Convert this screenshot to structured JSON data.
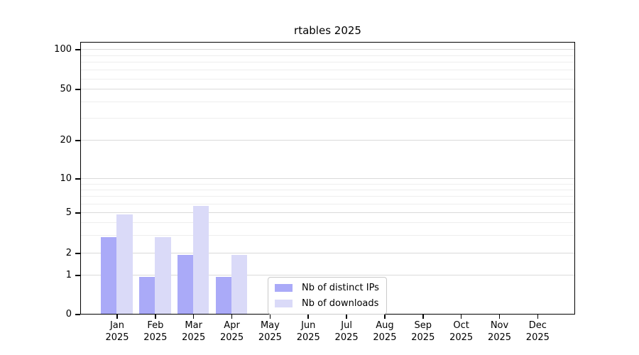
{
  "chart_data": {
    "type": "bar",
    "title": "rtables 2025",
    "x_year": "2025",
    "categories": [
      "Jan",
      "Feb",
      "Mar",
      "Apr",
      "May",
      "Jun",
      "Jul",
      "Aug",
      "Sep",
      "Oct",
      "Nov",
      "Dec"
    ],
    "series": [
      {
        "name": "Nb of distinct IPs",
        "color": "#aaaaf8",
        "values": [
          3,
          1,
          2,
          1,
          0,
          0,
          0,
          0,
          0,
          0,
          0,
          0
        ]
      },
      {
        "name": "Nb of downloads",
        "color": "#dadaf8",
        "values": [
          5,
          3,
          6,
          2,
          0,
          0,
          0,
          0,
          0,
          0,
          0,
          0
        ]
      }
    ],
    "y_axis": {
      "scale": "log-like (1-2-5 major ticks, linear segment from 0 to 1)",
      "ticks": [
        100,
        50,
        20,
        10,
        5,
        2,
        1,
        0
      ],
      "minor_gridlines": [
        3,
        4,
        6,
        7,
        8,
        9,
        30,
        40,
        60,
        70,
        80,
        90
      ],
      "ylim": [
        0,
        110
      ]
    },
    "legend": {
      "position": "lower center",
      "entries": [
        "Nb of distinct IPs",
        "Nb of downloads"
      ]
    },
    "grid": "horizontal major + minor gridlines"
  },
  "colors": {
    "grid_major": "#dadada",
    "grid_minor": "#eeeeee",
    "axis": "#000000",
    "background": "#ffffff"
  }
}
